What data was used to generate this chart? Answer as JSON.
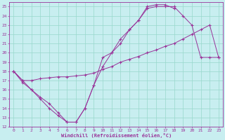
{
  "xlabel": "Windchill (Refroidissement éolien,°C)",
  "bg_color": "#c8eef0",
  "grid_color": "#98d8cc",
  "line_color": "#993399",
  "xlim": [
    -0.5,
    23.5
  ],
  "ylim": [
    12,
    25.5
  ],
  "xticks": [
    0,
    1,
    2,
    3,
    4,
    5,
    6,
    7,
    8,
    9,
    10,
    11,
    12,
    13,
    14,
    15,
    16,
    17,
    18,
    19,
    20,
    21,
    22,
    23
  ],
  "yticks": [
    12,
    13,
    14,
    15,
    16,
    17,
    18,
    19,
    20,
    21,
    22,
    23,
    24,
    25
  ],
  "curve1_x": [
    0,
    1,
    2,
    3,
    4,
    5,
    6,
    7,
    8,
    9,
    10,
    11,
    12,
    13,
    14,
    15,
    16,
    17,
    18,
    19,
    20,
    21,
    22,
    23
  ],
  "curve1_y": [
    18,
    17,
    16,
    15,
    14,
    13.2,
    12.5,
    12.5,
    14,
    16.5,
    19.5,
    20,
    21,
    22.5,
    23.5,
    24.8,
    25,
    25,
    25,
    24,
    23,
    19.5,
    19.5,
    19.5
  ],
  "curve2_x": [
    0,
    1,
    2,
    3,
    4,
    5,
    6,
    7,
    8,
    9,
    10,
    11,
    12,
    13,
    14,
    15,
    16,
    17,
    18
  ],
  "curve2_y": [
    18,
    16.8,
    16,
    15.2,
    14.5,
    13.5,
    12.5,
    12.5,
    14,
    16.5,
    18.5,
    20,
    21.5,
    22.5,
    23.5,
    25,
    25.2,
    25.2,
    24.8
  ],
  "curve3_x": [
    0,
    1,
    2,
    3,
    4,
    5,
    6,
    7,
    8,
    9,
    10,
    11,
    12,
    13,
    14,
    15,
    16,
    17,
    18,
    19,
    20,
    21,
    22,
    23
  ],
  "curve3_y": [
    18,
    17,
    17,
    17.2,
    17.3,
    17.4,
    17.4,
    17.5,
    17.6,
    17.8,
    18.2,
    18.5,
    19,
    19.3,
    19.6,
    20,
    20.3,
    20.7,
    21,
    21.5,
    22,
    22.5,
    23,
    19.5
  ]
}
